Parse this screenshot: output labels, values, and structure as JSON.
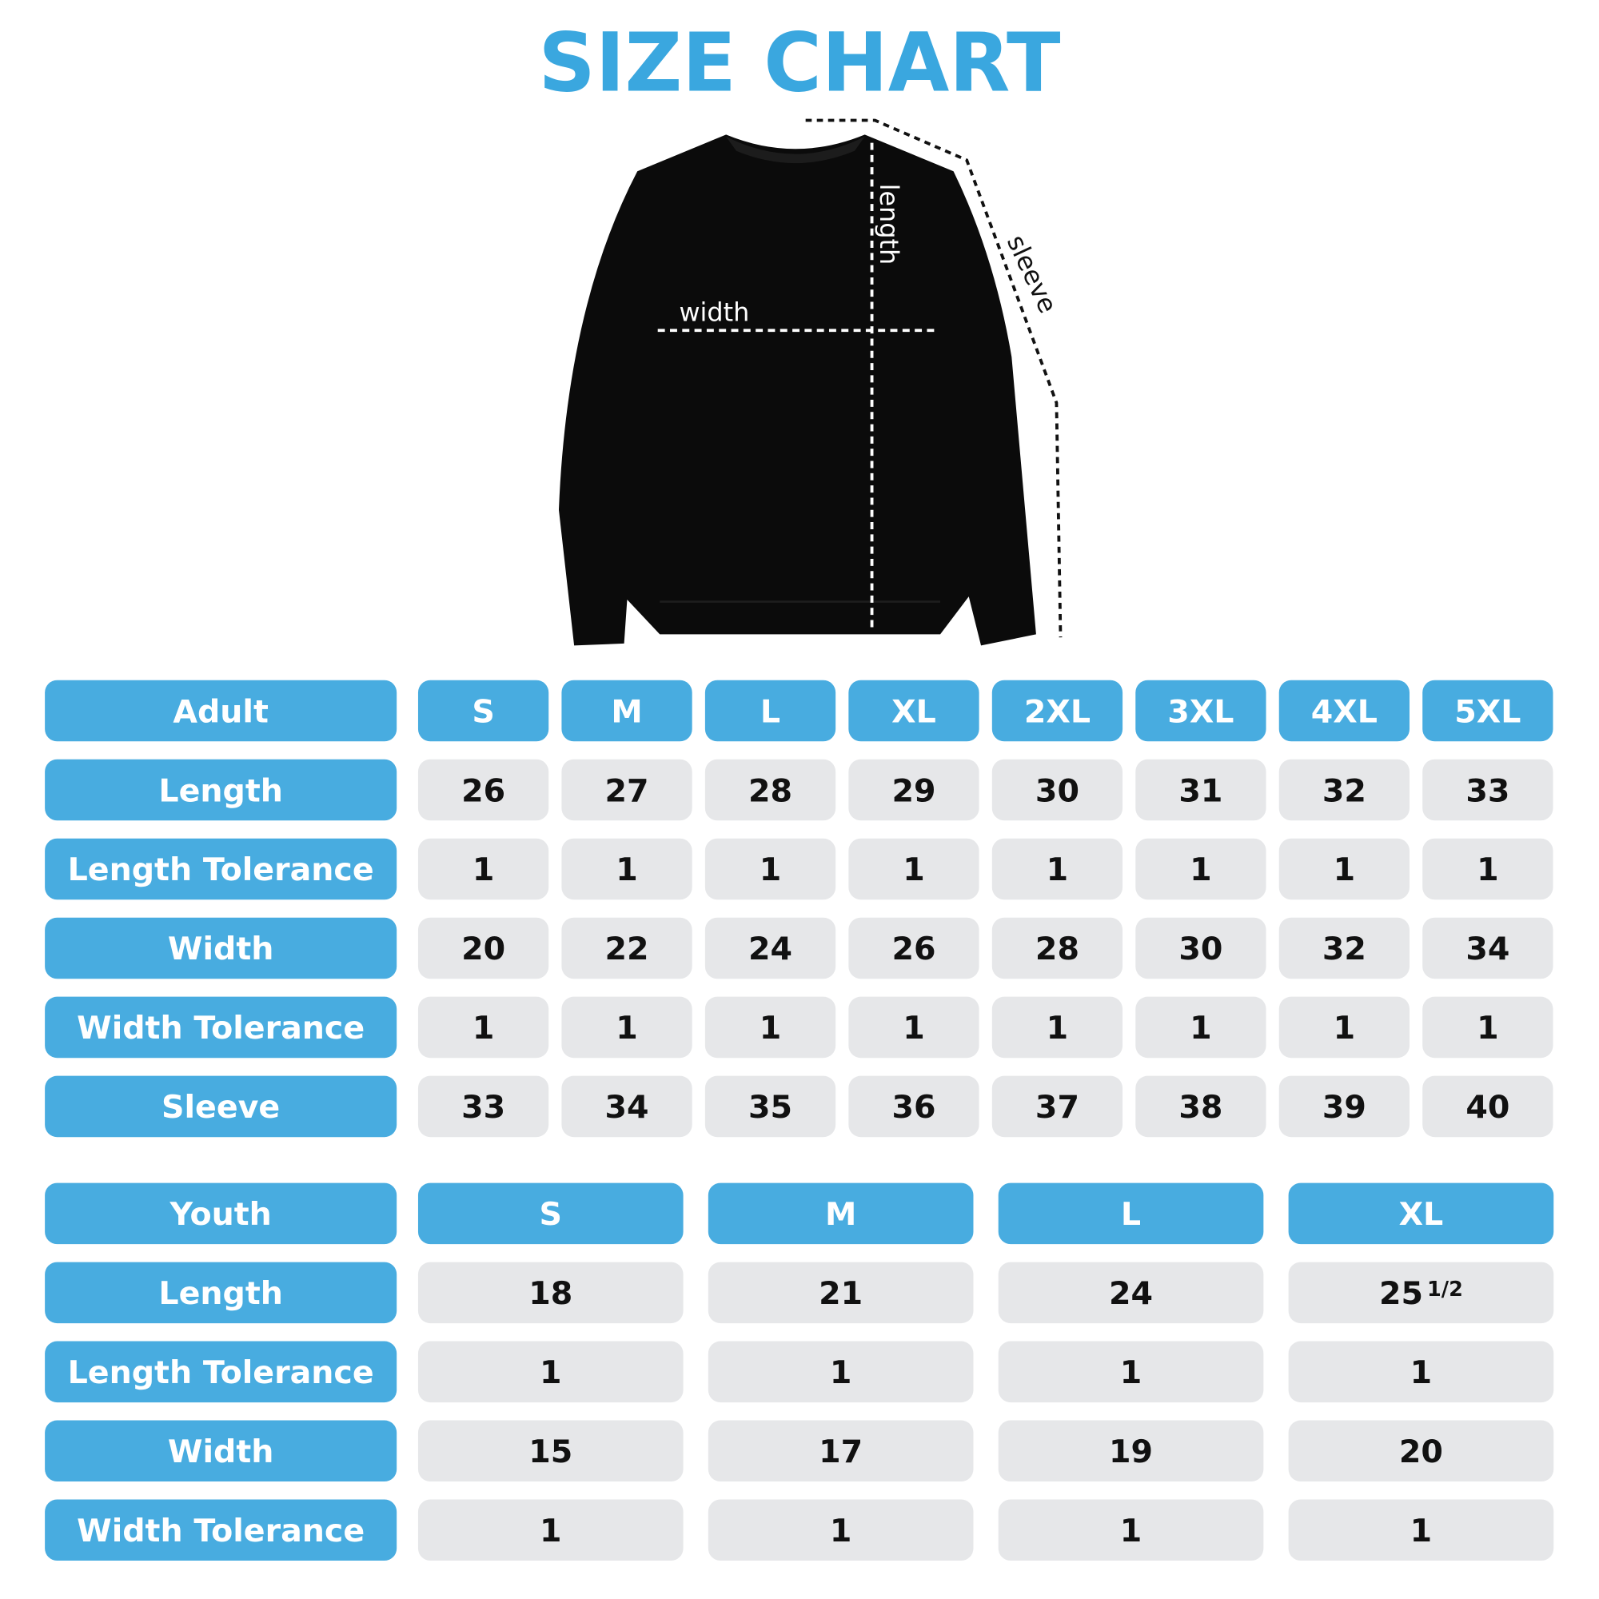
{
  "title": "SIZE CHART",
  "diagram": {
    "width_label": "width",
    "length_label": "length",
    "sleeve_label": "sleeve"
  },
  "adult": {
    "header": [
      "Adult",
      "S",
      "M",
      "L",
      "XL",
      "2XL",
      "3XL",
      "4XL",
      "5XL"
    ],
    "rows": [
      {
        "label": "Length",
        "values": [
          26,
          27,
          28,
          29,
          30,
          31,
          32,
          33
        ]
      },
      {
        "label": "Length Tolerance",
        "values": [
          1,
          1,
          1,
          1,
          1,
          1,
          1,
          1
        ]
      },
      {
        "label": "Width",
        "values": [
          20,
          22,
          24,
          26,
          28,
          30,
          32,
          34
        ]
      },
      {
        "label": "Width Tolerance",
        "values": [
          1,
          1,
          1,
          1,
          1,
          1,
          1,
          1
        ]
      },
      {
        "label": "Sleeve",
        "values": [
          33,
          34,
          35,
          36,
          37,
          38,
          39,
          40
        ]
      }
    ]
  },
  "youth": {
    "header": [
      "Youth",
      "S",
      "M",
      "L",
      "XL"
    ],
    "rows": [
      {
        "label": "Length",
        "values": [
          18,
          21,
          24,
          {
            "whole": 25,
            "fraction": "1/2"
          }
        ]
      },
      {
        "label": "Length Tolerance",
        "values": [
          1,
          1,
          1,
          1
        ]
      },
      {
        "label": "Width",
        "values": [
          15,
          17,
          19,
          20
        ]
      },
      {
        "label": "Width Tolerance",
        "values": [
          1,
          1,
          1,
          1
        ]
      }
    ]
  }
}
